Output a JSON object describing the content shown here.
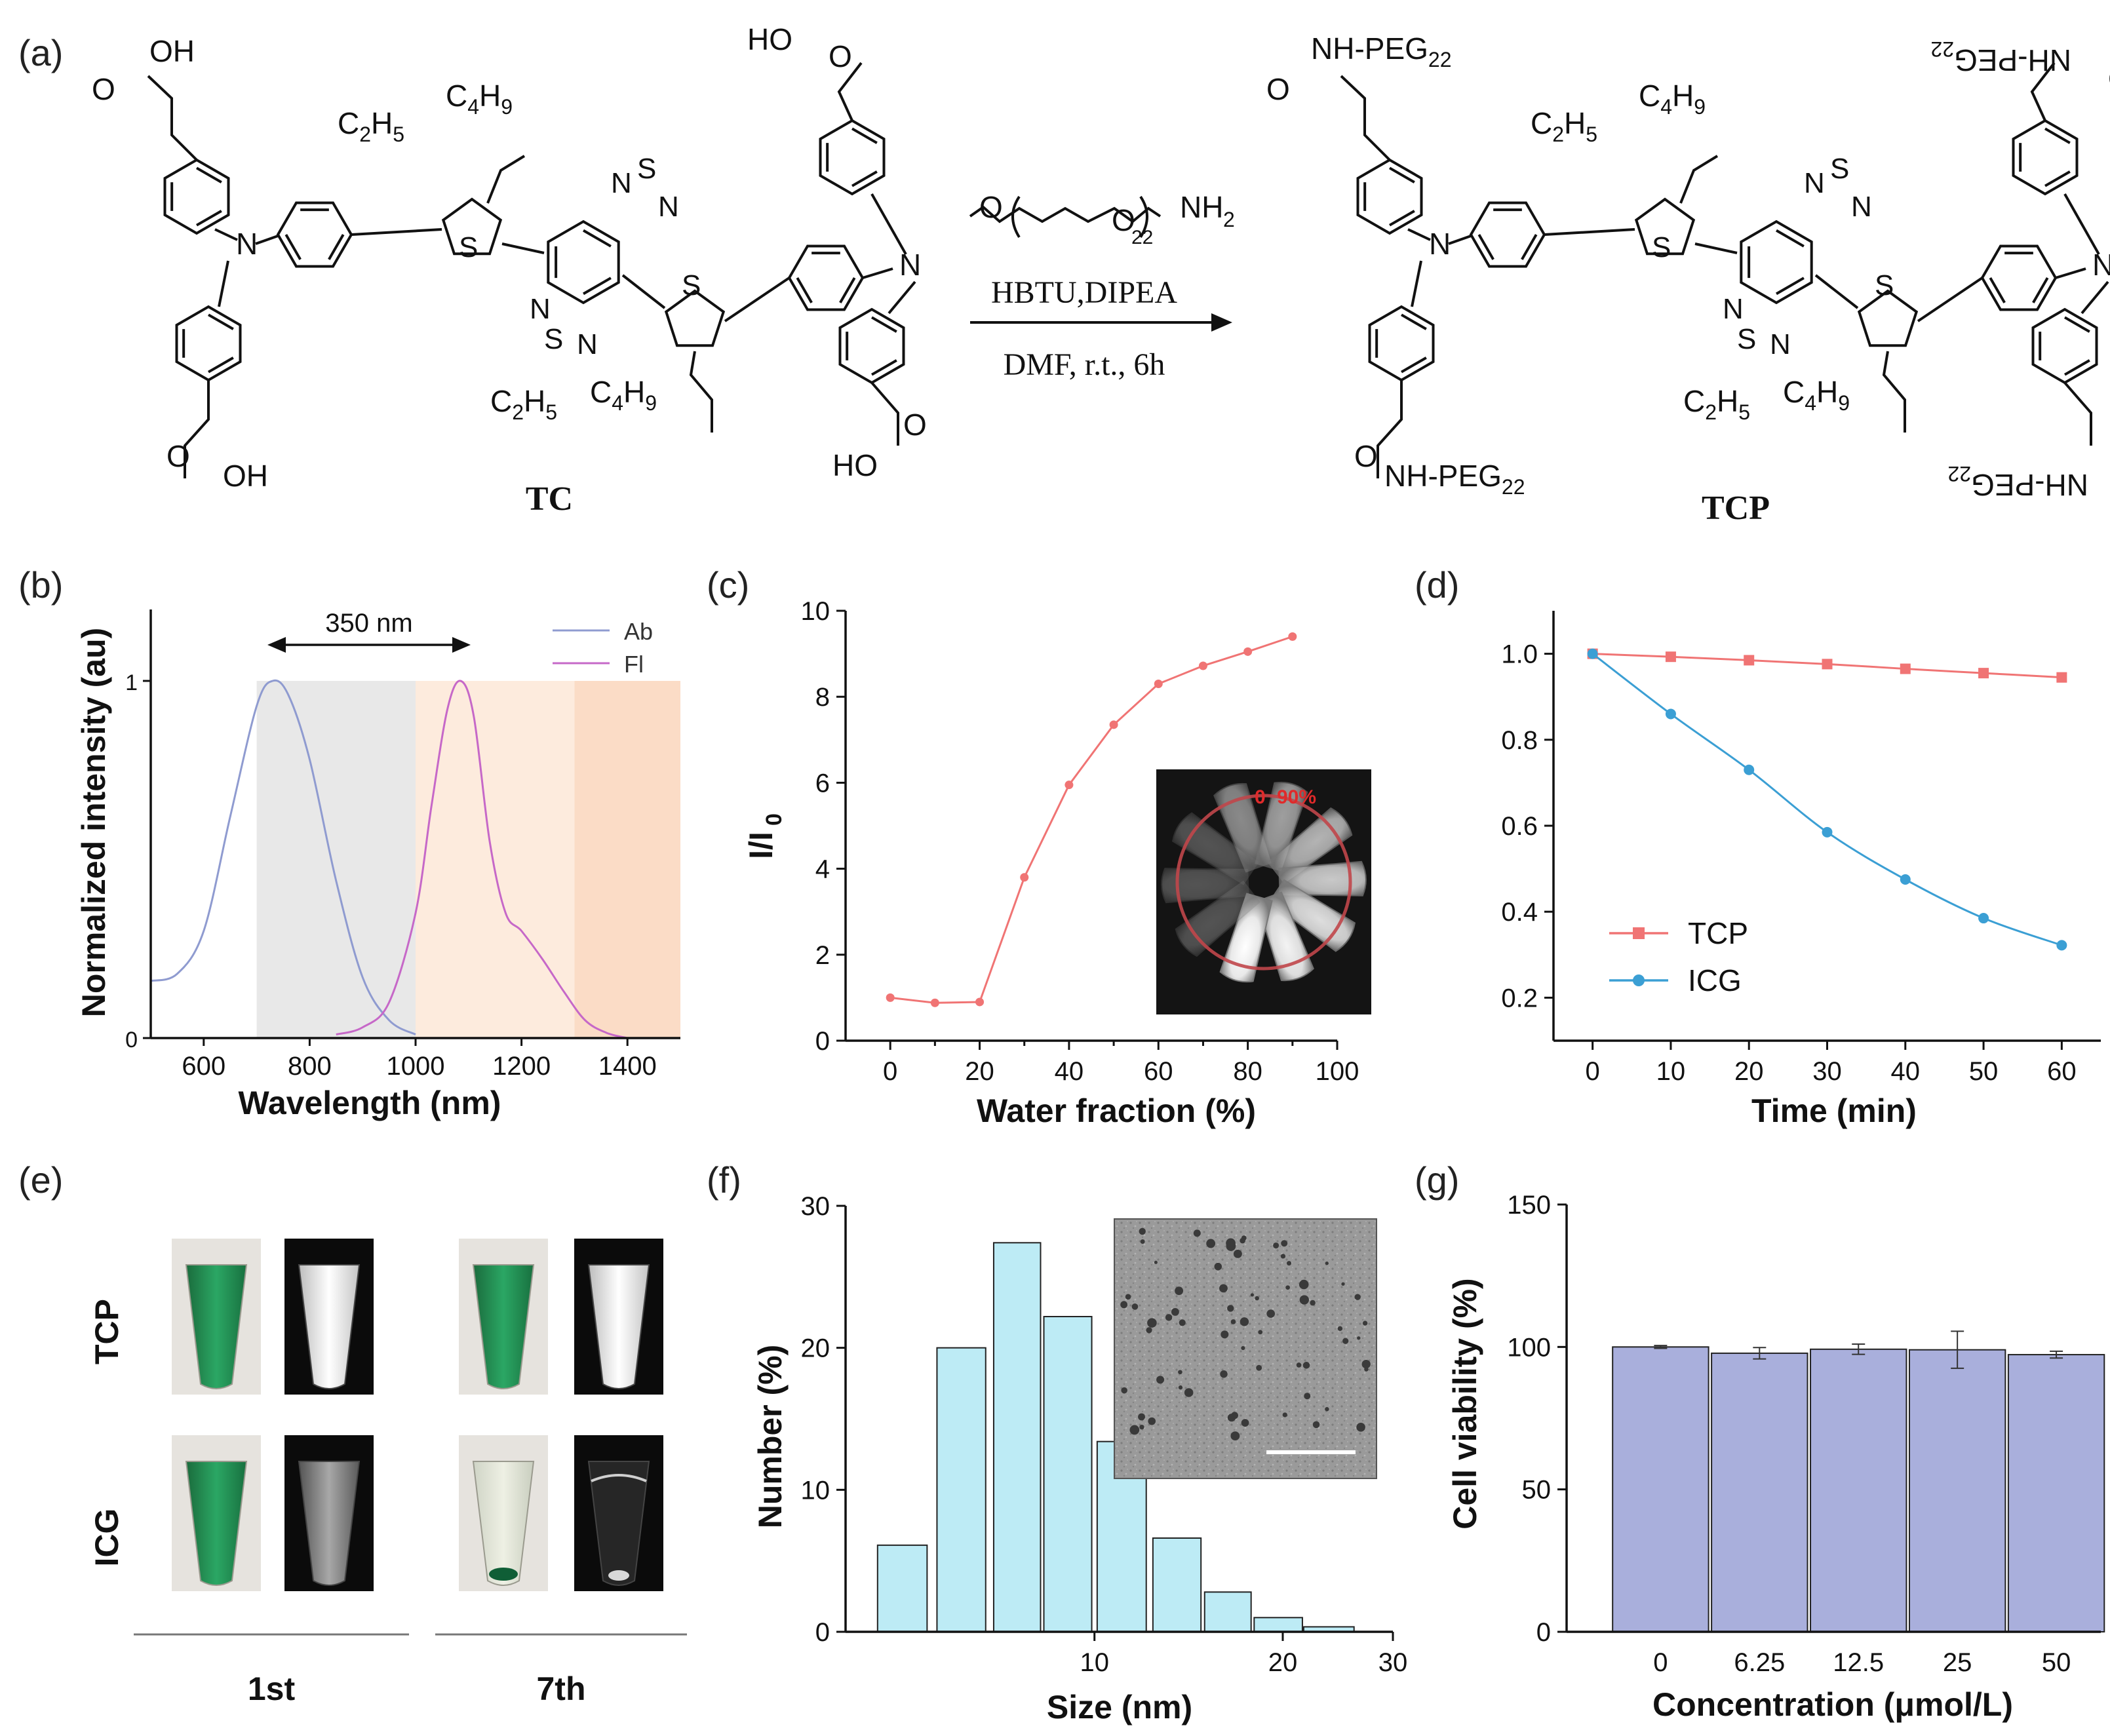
{
  "panel_labels": {
    "a": "(a)",
    "b": "(b)",
    "c": "(c)",
    "d": "(d)",
    "e": "(e)",
    "f": "(f)",
    "g": "(g)"
  },
  "scheme": {
    "tc_label": "TC",
    "tcp_label": "TCP",
    "reagent_peg_subscript": "22",
    "reagent_nh2": "NH",
    "reagent_nh2_sub": "2",
    "reagent_line1": "HBTU,DIPEA",
    "reagent_line2": "DMF, r.t., 6h",
    "cooh_oh": "OH",
    "cooh_ho": "HO",
    "ethylhexyl_c2": "C",
    "ethylhexyl_c2_sub": "2",
    "ethylhexyl_h5": "H",
    "ethylhexyl_h5_sub": "5",
    "ethylhexyl_c4": "C",
    "ethylhexyl_c4_sub": "4",
    "ethylhexyl_h9": "H",
    "ethylhexyl_h9_sub": "9",
    "amide_text": "NH-PEG",
    "amide_sub": "22",
    "thio_s": "S",
    "ring_n": "N",
    "ring_o": "O"
  },
  "colors": {
    "red": "#f07474",
    "blue": "#3b9fd4",
    "ab": "#8f9bd0",
    "fl": "#c668c8",
    "bar_g": "#a9afdc",
    "bar_f": "#bdebf5",
    "shade_grey": "#e8e8e8",
    "shade_peach": "#fdebdd",
    "shade_orange": "#fbdcc6"
  },
  "e_panel": {
    "row_labels": [
      "TCP",
      "ICG"
    ],
    "col_labels": [
      "1st",
      "7th"
    ]
  },
  "chart_data": [
    {
      "id": "b",
      "type": "line",
      "title": "",
      "xlabel": "Wavelength (nm)",
      "ylabel": "Normalized intensity (au)",
      "xlim": [
        500,
        1500
      ],
      "ylim": [
        0,
        1.2
      ],
      "xticks": [
        600,
        800,
        1000,
        1200,
        1400
      ],
      "yticks": [
        0,
        1
      ],
      "legend": [
        "Ab",
        "Fl"
      ],
      "annotation": "350 nm",
      "shaded_regions": [
        [
          700,
          1000
        ],
        [
          1000,
          1300
        ],
        [
          1300,
          1500
        ]
      ],
      "series": [
        {
          "name": "Ab",
          "x": [
            500,
            550,
            600,
            650,
            700,
            730,
            760,
            800,
            850,
            900,
            950,
            1000
          ],
          "y": [
            0.16,
            0.18,
            0.3,
            0.62,
            0.93,
            1.0,
            0.96,
            0.78,
            0.44,
            0.17,
            0.05,
            0.01
          ]
        },
        {
          "name": "Fl",
          "x": [
            850,
            900,
            950,
            1000,
            1030,
            1060,
            1085,
            1110,
            1140,
            1170,
            1200,
            1240,
            1280,
            1320,
            1360,
            1400
          ],
          "y": [
            0.01,
            0.03,
            0.1,
            0.35,
            0.65,
            0.92,
            1.0,
            0.9,
            0.55,
            0.35,
            0.3,
            0.22,
            0.13,
            0.05,
            0.015,
            0.0
          ]
        }
      ]
    },
    {
      "id": "c",
      "type": "line",
      "xlabel": "Water fraction (%)",
      "ylabel": "I/I0",
      "ylabel_main": "I/I",
      "ylabel_sub": "0",
      "xlim": [
        -10,
        100
      ],
      "ylim": [
        0,
        10
      ],
      "xticks": [
        0,
        20,
        40,
        60,
        80,
        100
      ],
      "yticks": [
        0,
        2,
        4,
        6,
        8,
        10
      ],
      "series": [
        {
          "name": "I/I0",
          "x": [
            0,
            10,
            20,
            30,
            40,
            50,
            60,
            70,
            80,
            90
          ],
          "y": [
            1.0,
            0.88,
            0.9,
            3.8,
            5.95,
            7.35,
            8.3,
            8.72,
            9.05,
            9.4
          ]
        }
      ],
      "inset_labels": [
        "0",
        "90%"
      ]
    },
    {
      "id": "d",
      "type": "line",
      "xlabel": "Time (min)",
      "ylabel": "",
      "xlim": [
        -5,
        65
      ],
      "ylim": [
        0.1,
        1.1
      ],
      "xticks": [
        0,
        10,
        20,
        30,
        40,
        50,
        60
      ],
      "yticks": [
        0.2,
        0.4,
        0.6,
        0.8,
        1.0
      ],
      "ytick_labels": [
        "0.2",
        "0.4",
        "0.6",
        "0.8",
        "1.0"
      ],
      "series": [
        {
          "name": "TCP",
          "x": [
            0,
            10,
            20,
            30,
            40,
            50,
            60
          ],
          "y": [
            1.0,
            0.993,
            0.985,
            0.976,
            0.965,
            0.955,
            0.945
          ]
        },
        {
          "name": "ICG",
          "x": [
            0,
            10,
            20,
            30,
            40,
            50,
            60
          ],
          "y": [
            1.0,
            0.86,
            0.73,
            0.585,
            0.475,
            0.385,
            0.322
          ]
        }
      ]
    },
    {
      "id": "f",
      "type": "bar",
      "xlabel": "Size (nm)",
      "ylabel": "Number (%)",
      "xscale": "log",
      "xlim": [
        4,
        30
      ],
      "ylim": [
        0,
        30
      ],
      "xticks": [
        10,
        20,
        30
      ],
      "yticks": [
        0,
        10,
        20,
        30
      ],
      "bins": [
        [
          4.5,
          5.4
        ],
        [
          5.6,
          6.7
        ],
        [
          6.9,
          8.2
        ],
        [
          8.3,
          9.9
        ],
        [
          10.1,
          12.1
        ],
        [
          12.4,
          14.8
        ],
        [
          15.0,
          17.8
        ],
        [
          18.0,
          21.5
        ],
        [
          21.6,
          26.0
        ]
      ],
      "values": [
        6.1,
        20.0,
        27.4,
        22.2,
        13.4,
        6.6,
        2.8,
        1.0,
        0.35
      ]
    },
    {
      "id": "g",
      "type": "bar",
      "xlabel": "Concentration (μmol/L)",
      "ylabel": "Cell viability (%)",
      "ylim": [
        0,
        150
      ],
      "yticks": [
        0,
        50,
        100,
        150
      ],
      "categories": [
        "0",
        "6.25",
        "12.5",
        "25",
        "50"
      ],
      "values": [
        100,
        97.8,
        99.2,
        99.0,
        97.3
      ],
      "errors": [
        0.5,
        2.0,
        1.8,
        6.5,
        1.2
      ]
    }
  ]
}
